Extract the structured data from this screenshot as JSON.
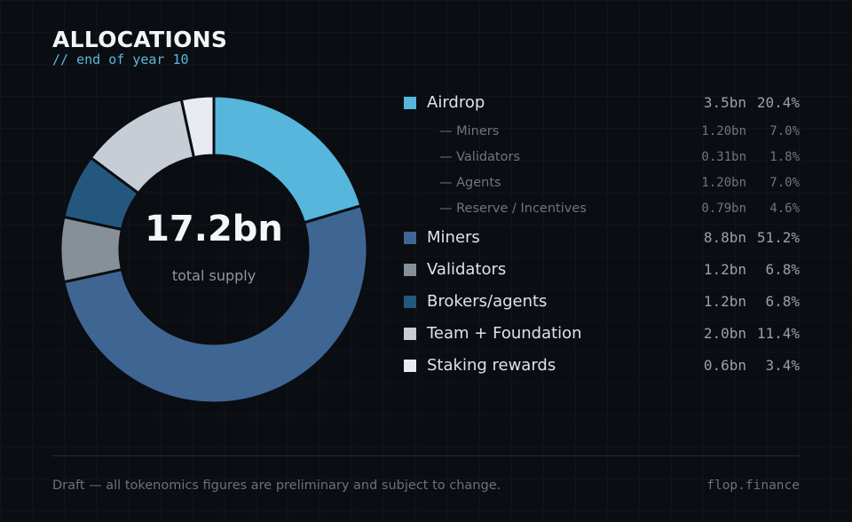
{
  "header": {
    "title": "ALLOCATIONS",
    "subtitle": "// end of year 10"
  },
  "chart_data": {
    "type": "pie",
    "style": "donut",
    "center_value": "17.2bn",
    "center_label": "total supply",
    "series": [
      {
        "name": "Airdrop",
        "amount": "3.5bn",
        "percent_label": "20.4%",
        "value": 20.4,
        "color": "#56b6dc"
      },
      {
        "name": "Miners",
        "amount": "8.8bn",
        "percent_label": "51.2%",
        "value": 51.2,
        "color": "#3f6593"
      },
      {
        "name": "Validators",
        "amount": "1.2bn",
        "percent_label": "6.8%",
        "value": 6.8,
        "color": "#878f98"
      },
      {
        "name": "Brokers/agents",
        "amount": "1.2bn",
        "percent_label": "6.8%",
        "value": 6.8,
        "color": "#24577d"
      },
      {
        "name": "Team + Foundation",
        "amount": "2.0bn",
        "percent_label": "11.4%",
        "value": 11.4,
        "color": "#c7cdd5"
      },
      {
        "name": "Staking rewards",
        "amount": "0.6bn",
        "percent_label": "3.4%",
        "value": 3.4,
        "color": "#e8ecf2"
      }
    ],
    "airdrop_breakdown": [
      {
        "label": "— Miners",
        "amount": "1.20bn",
        "percent_label": "7.0%"
      },
      {
        "label": "— Validators",
        "amount": "0.31bn",
        "percent_label": "1.8%"
      },
      {
        "label": "— Agents",
        "amount": "1.20bn",
        "percent_label": "7.0%"
      },
      {
        "label": "— Reserve / Incentives",
        "amount": "0.79bn",
        "percent_label": "4.6%"
      }
    ],
    "legend_position": "right",
    "slice_border_color": "#0a0d12"
  },
  "footer": {
    "note": "Draft — all tokenomics figures are preliminary and subject to change.",
    "site": "flop.finance"
  }
}
